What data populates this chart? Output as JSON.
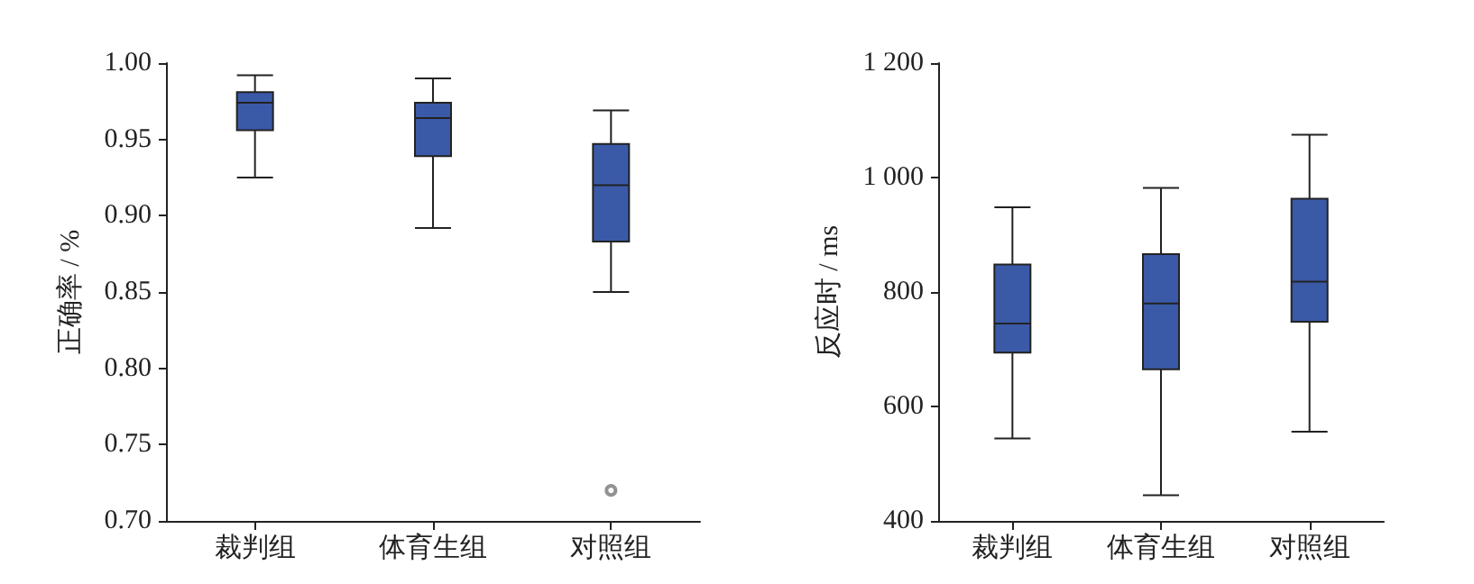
{
  "chart_data": [
    {
      "type": "box",
      "ylabel": "正确率 / %",
      "categories": [
        "裁判组",
        "体育生组",
        "对照组"
      ],
      "color": "#3a5aa8",
      "boxes": [
        {
          "low": 0.925,
          "q1": 0.956,
          "median": 0.974,
          "q3": 0.981,
          "high": 0.992
        },
        {
          "low": 0.892,
          "q1": 0.939,
          "median": 0.964,
          "q3": 0.974,
          "high": 0.99
        },
        {
          "low": 0.85,
          "q1": 0.883,
          "median": 0.92,
          "q3": 0.947,
          "high": 0.969,
          "outliers": [
            0.72
          ]
        }
      ],
      "ylim": [
        0.7,
        1.0
      ],
      "yticks": [
        {
          "value": 0.7,
          "label": "0.70"
        },
        {
          "value": 0.75,
          "label": "0.75"
        },
        {
          "value": 0.8,
          "label": "0.80"
        },
        {
          "value": 0.85,
          "label": "0.85"
        },
        {
          "value": 0.9,
          "label": "0.90"
        },
        {
          "value": 0.95,
          "label": "0.95"
        },
        {
          "value": 1.0,
          "label": "1.00"
        }
      ],
      "grid": false
    },
    {
      "type": "box",
      "ylabel": "反应时 / ms",
      "categories": [
        "裁判组",
        "体育生组",
        "对照组"
      ],
      "color": "#3a5aa8",
      "boxes": [
        {
          "low": 544,
          "q1": 694,
          "median": 745,
          "q3": 848,
          "high": 948
        },
        {
          "low": 445,
          "q1": 665,
          "median": 780,
          "q3": 866,
          "high": 982
        },
        {
          "low": 556,
          "q1": 748,
          "median": 818,
          "q3": 963,
          "high": 1075
        }
      ],
      "ylim": [
        400,
        1200
      ],
      "yticks": [
        400,
        600,
        800,
        {
          "value": 1000,
          "label": "1 000"
        },
        {
          "value": 1200,
          "label": "1 200"
        }
      ],
      "grid": false
    }
  ]
}
